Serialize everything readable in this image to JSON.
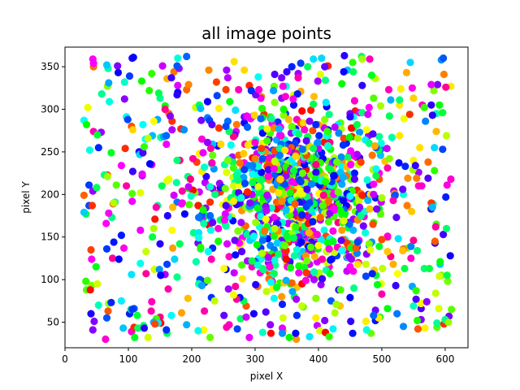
{
  "chart_data": {
    "type": "scatter",
    "title": "all image points",
    "xlabel": "pixel X",
    "ylabel": "pixel Y",
    "xlim": [
      0,
      636
    ],
    "ylim": [
      20,
      373
    ],
    "xticks": [
      0,
      100,
      200,
      300,
      400,
      500,
      600
    ],
    "yticks": [
      50,
      100,
      150,
      200,
      250,
      300,
      350
    ],
    "grid": false,
    "legend": "none",
    "point_count": 1500,
    "color_scheme": "hsv",
    "colors": [
      "#ff0000",
      "#ff00ff",
      "#9900ff",
      "#1a00ff",
      "#00a2ff",
      "#00ffc8",
      "#33ff00",
      "#ffa500",
      "#ffff00"
    ],
    "points": []
  }
}
